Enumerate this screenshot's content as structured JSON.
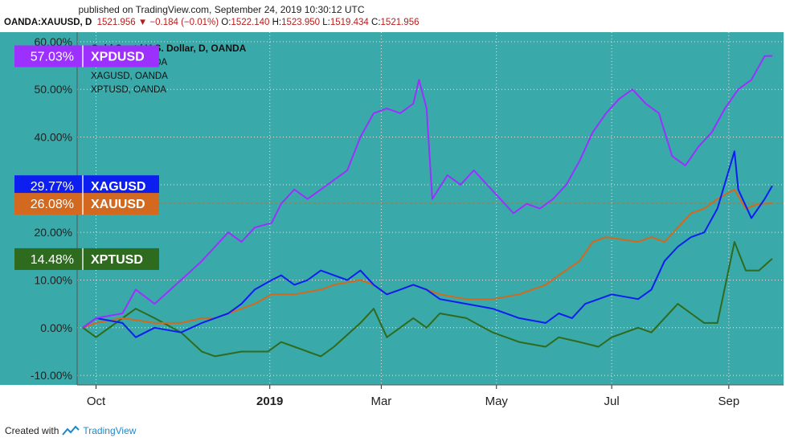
{
  "header": {
    "published": "published on TradingView.com, September 24, 2019 10:30:12 UTC",
    "symbol": "OANDA:XAUUSD, D",
    "last": "1521.956",
    "arrow": "▼",
    "change": "−0.184 (−0.01%)",
    "o_label": "O:",
    "o_value": "1522.140",
    "h_label": "H:",
    "h_value": "1523.950",
    "l_label": "L:",
    "l_value": "1519.434",
    "c_label": "C:",
    "c_value": "1521.956"
  },
  "footer": {
    "created_with": "Created with",
    "brand": "TradingView"
  },
  "colors": {
    "background": "#3aa9a9",
    "grid": "#ffffff",
    "axis_text": "#222222",
    "dashed_line": "#d2691e"
  },
  "chart_data": {
    "type": "line",
    "title": "Gold Spot / U.S. Dollar, D, OANDA",
    "legend_lines": [
      "XPDUSD, OANDA",
      "XAGUSD, OANDA",
      "XPTUSD, OANDA"
    ],
    "legend_placement": "top-left",
    "ylim": [
      -12,
      62
    ],
    "y_ticks": [
      -10,
      0,
      10,
      20,
      30,
      40,
      50,
      60
    ],
    "y_tick_labels": [
      "-10.00%",
      "0.00%",
      "10.00%",
      "20.00%",
      "30.00%",
      "40.00%",
      "50.00%",
      "60.00%"
    ],
    "xlim": [
      "2018-09-21",
      "2019-09-30"
    ],
    "x_ticks": [
      {
        "label": "Oct",
        "date": "2018-10-01",
        "bold": false
      },
      {
        "label": "2019",
        "date": "2019-01-01",
        "bold": true
      },
      {
        "label": "Mar",
        "date": "2019-03-01",
        "bold": false
      },
      {
        "label": "May",
        "date": "2019-05-01",
        "bold": false
      },
      {
        "label": "Jul",
        "date": "2019-07-01",
        "bold": false
      },
      {
        "label": "Sep",
        "date": "2019-09-01",
        "bold": false
      }
    ],
    "grid": true,
    "series": [
      {
        "name": "XPDUSD",
        "label": "57.03%",
        "last": 57.03,
        "color": "#9b30ff",
        "points": [
          [
            "2018-09-24",
            0
          ],
          [
            "2018-10-01",
            2
          ],
          [
            "2018-10-15",
            3
          ],
          [
            "2018-10-22",
            8
          ],
          [
            "2018-11-01",
            5
          ],
          [
            "2018-11-15",
            10
          ],
          [
            "2018-11-26",
            14
          ],
          [
            "2018-12-03",
            17
          ],
          [
            "2018-12-10",
            20
          ],
          [
            "2018-12-17",
            18
          ],
          [
            "2018-12-24",
            21
          ],
          [
            "2019-01-02",
            22
          ],
          [
            "2019-01-07",
            26
          ],
          [
            "2019-01-14",
            29
          ],
          [
            "2019-01-21",
            27
          ],
          [
            "2019-01-28",
            29
          ],
          [
            "2019-02-04",
            31
          ],
          [
            "2019-02-11",
            33
          ],
          [
            "2019-02-18",
            40
          ],
          [
            "2019-02-25",
            45
          ],
          [
            "2019-03-04",
            46
          ],
          [
            "2019-03-11",
            45
          ],
          [
            "2019-03-18",
            47
          ],
          [
            "2019-03-21",
            52
          ],
          [
            "2019-03-25",
            46
          ],
          [
            "2019-03-28",
            27
          ],
          [
            "2019-04-05",
            32
          ],
          [
            "2019-04-12",
            30
          ],
          [
            "2019-04-19",
            33
          ],
          [
            "2019-04-26",
            30
          ],
          [
            "2019-05-03",
            27
          ],
          [
            "2019-05-10",
            24
          ],
          [
            "2019-05-17",
            26
          ],
          [
            "2019-05-24",
            25
          ],
          [
            "2019-05-31",
            27
          ],
          [
            "2019-06-07",
            30
          ],
          [
            "2019-06-14",
            35
          ],
          [
            "2019-06-21",
            41
          ],
          [
            "2019-06-28",
            45
          ],
          [
            "2019-07-05",
            48
          ],
          [
            "2019-07-12",
            50
          ],
          [
            "2019-07-19",
            47
          ],
          [
            "2019-07-26",
            45
          ],
          [
            "2019-08-02",
            36
          ],
          [
            "2019-08-09",
            34
          ],
          [
            "2019-08-16",
            38
          ],
          [
            "2019-08-23",
            41
          ],
          [
            "2019-08-30",
            46
          ],
          [
            "2019-09-06",
            50
          ],
          [
            "2019-09-13",
            52
          ],
          [
            "2019-09-20",
            57
          ],
          [
            "2019-09-24",
            57.03
          ]
        ]
      },
      {
        "name": "XAGUSD",
        "label": "29.77%",
        "last": 29.77,
        "color": "#0d1ef0",
        "points": [
          [
            "2018-09-24",
            0
          ],
          [
            "2018-10-01",
            2
          ],
          [
            "2018-10-15",
            1
          ],
          [
            "2018-10-22",
            -2
          ],
          [
            "2018-11-01",
            0
          ],
          [
            "2018-11-15",
            -1
          ],
          [
            "2018-11-26",
            1
          ],
          [
            "2018-12-03",
            2
          ],
          [
            "2018-12-10",
            3
          ],
          [
            "2018-12-17",
            5
          ],
          [
            "2018-12-24",
            8
          ],
          [
            "2019-01-02",
            10
          ],
          [
            "2019-01-07",
            11
          ],
          [
            "2019-01-14",
            9
          ],
          [
            "2019-01-21",
            10
          ],
          [
            "2019-01-28",
            12
          ],
          [
            "2019-02-04",
            11
          ],
          [
            "2019-02-11",
            10
          ],
          [
            "2019-02-18",
            12
          ],
          [
            "2019-02-25",
            9
          ],
          [
            "2019-03-04",
            7
          ],
          [
            "2019-03-11",
            8
          ],
          [
            "2019-03-18",
            9
          ],
          [
            "2019-03-25",
            8
          ],
          [
            "2019-04-01",
            6
          ],
          [
            "2019-04-15",
            5
          ],
          [
            "2019-04-29",
            4
          ],
          [
            "2019-05-13",
            2
          ],
          [
            "2019-05-27",
            1
          ],
          [
            "2019-06-03",
            3
          ],
          [
            "2019-06-10",
            2
          ],
          [
            "2019-06-17",
            5
          ],
          [
            "2019-06-24",
            6
          ],
          [
            "2019-07-01",
            7
          ],
          [
            "2019-07-15",
            6
          ],
          [
            "2019-07-22",
            8
          ],
          [
            "2019-07-29",
            14
          ],
          [
            "2019-08-05",
            17
          ],
          [
            "2019-08-12",
            19
          ],
          [
            "2019-08-19",
            20
          ],
          [
            "2019-08-26",
            25
          ],
          [
            "2019-09-04",
            37
          ],
          [
            "2019-09-06",
            29
          ],
          [
            "2019-09-13",
            23
          ],
          [
            "2019-09-20",
            27
          ],
          [
            "2019-09-24",
            29.77
          ]
        ]
      },
      {
        "name": "XAUUSD",
        "label": "26.08%",
        "last": 26.08,
        "color": "#d2691e",
        "points": [
          [
            "2018-09-24",
            0
          ],
          [
            "2018-10-01",
            1
          ],
          [
            "2018-10-15",
            2
          ],
          [
            "2018-11-01",
            1
          ],
          [
            "2018-11-15",
            1
          ],
          [
            "2018-11-26",
            2
          ],
          [
            "2018-12-03",
            2
          ],
          [
            "2018-12-10",
            3
          ],
          [
            "2018-12-17",
            4
          ],
          [
            "2018-12-24",
            5
          ],
          [
            "2019-01-02",
            7
          ],
          [
            "2019-01-14",
            7
          ],
          [
            "2019-01-28",
            8
          ],
          [
            "2019-02-04",
            9
          ],
          [
            "2019-02-18",
            10
          ],
          [
            "2019-02-25",
            9
          ],
          [
            "2019-03-04",
            7
          ],
          [
            "2019-03-11",
            8
          ],
          [
            "2019-03-18",
            9
          ],
          [
            "2019-03-25",
            8
          ],
          [
            "2019-04-01",
            7
          ],
          [
            "2019-04-15",
            6
          ],
          [
            "2019-04-29",
            6
          ],
          [
            "2019-05-13",
            7
          ],
          [
            "2019-05-27",
            9
          ],
          [
            "2019-06-03",
            11
          ],
          [
            "2019-06-14",
            14
          ],
          [
            "2019-06-21",
            18
          ],
          [
            "2019-06-28",
            19
          ],
          [
            "2019-07-15",
            18
          ],
          [
            "2019-07-22",
            19
          ],
          [
            "2019-07-29",
            18
          ],
          [
            "2019-08-05",
            21
          ],
          [
            "2019-08-12",
            24
          ],
          [
            "2019-08-19",
            25
          ],
          [
            "2019-08-26",
            27
          ],
          [
            "2019-09-04",
            29
          ],
          [
            "2019-09-10",
            25
          ],
          [
            "2019-09-17",
            26
          ],
          [
            "2019-09-24",
            26.08
          ]
        ]
      },
      {
        "name": "XPTUSD",
        "label": "14.48%",
        "last": 14.48,
        "color": "#2e6b1f",
        "points": [
          [
            "2018-09-24",
            0
          ],
          [
            "2018-10-01",
            -2
          ],
          [
            "2018-10-15",
            2
          ],
          [
            "2018-10-22",
            4
          ],
          [
            "2018-11-01",
            2
          ],
          [
            "2018-11-15",
            -1
          ],
          [
            "2018-11-26",
            -5
          ],
          [
            "2018-12-03",
            -6
          ],
          [
            "2018-12-17",
            -5
          ],
          [
            "2018-12-31",
            -5
          ],
          [
            "2019-01-07",
            -3
          ],
          [
            "2019-01-14",
            -4
          ],
          [
            "2019-01-21",
            -5
          ],
          [
            "2019-01-28",
            -6
          ],
          [
            "2019-02-04",
            -4
          ],
          [
            "2019-02-18",
            1
          ],
          [
            "2019-02-25",
            4
          ],
          [
            "2019-03-04",
            -2
          ],
          [
            "2019-03-11",
            0
          ],
          [
            "2019-03-18",
            2
          ],
          [
            "2019-03-25",
            0
          ],
          [
            "2019-04-01",
            3
          ],
          [
            "2019-04-15",
            2
          ],
          [
            "2019-04-29",
            -1
          ],
          [
            "2019-05-13",
            -3
          ],
          [
            "2019-05-27",
            -4
          ],
          [
            "2019-06-03",
            -2
          ],
          [
            "2019-06-14",
            -3
          ],
          [
            "2019-06-24",
            -4
          ],
          [
            "2019-07-01",
            -2
          ],
          [
            "2019-07-15",
            0
          ],
          [
            "2019-07-22",
            -1
          ],
          [
            "2019-07-29",
            2
          ],
          [
            "2019-08-05",
            5
          ],
          [
            "2019-08-12",
            3
          ],
          [
            "2019-08-19",
            1
          ],
          [
            "2019-08-26",
            1
          ],
          [
            "2019-09-04",
            18
          ],
          [
            "2019-09-10",
            12
          ],
          [
            "2019-09-17",
            12
          ],
          [
            "2019-09-24",
            14.48
          ]
        ]
      }
    ]
  }
}
